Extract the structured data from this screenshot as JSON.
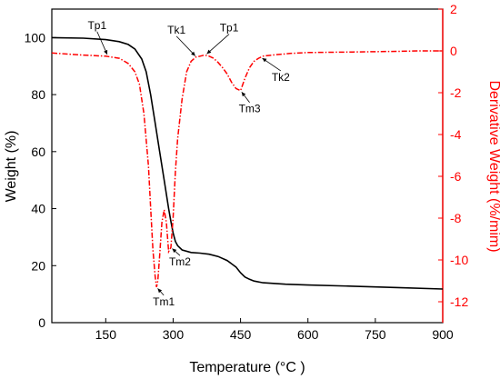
{
  "chart_data": {
    "type": "line",
    "xlabel": "Temperature (°C )",
    "ylabel_left": "Weight (%)",
    "ylabel_right": "Derivative Weight (%/mim)",
    "xlim": [
      30,
      900
    ],
    "ylim_left": [
      0,
      110
    ],
    "ylim_right": [
      -13,
      2
    ],
    "xticks": [
      150,
      300,
      450,
      600,
      750,
      900
    ],
    "yticks_left": [
      0,
      20,
      40,
      60,
      80,
      100
    ],
    "yticks_right": [
      2,
      0,
      -2,
      -4,
      -6,
      -8,
      -10,
      -12
    ],
    "grid": false,
    "colors": {
      "weight": "#000000",
      "derivative": "#ff0000"
    },
    "series": [
      {
        "axis": "left",
        "style": "solid",
        "x": [
          30,
          100,
          150,
          180,
          200,
          215,
          230,
          240,
          250,
          260,
          270,
          280,
          290,
          295,
          300,
          305,
          310,
          320,
          340,
          360,
          380,
          400,
          420,
          440,
          450,
          460,
          470,
          480,
          500,
          550,
          600,
          700,
          800,
          900
        ],
        "y": [
          100,
          99.8,
          99.3,
          98.6,
          97.6,
          96.0,
          92.5,
          88.0,
          80.0,
          70.0,
          60.0,
          50.0,
          40.0,
          35.5,
          31.5,
          28.5,
          27.0,
          25.5,
          24.6,
          24.4,
          24.0,
          23.2,
          21.8,
          19.5,
          17.5,
          16.0,
          15.2,
          14.6,
          14.0,
          13.5,
          13.2,
          12.8,
          12.3,
          11.8
        ]
      },
      {
        "axis": "right",
        "style": "dash-dot",
        "x": [
          30,
          100,
          150,
          180,
          200,
          215,
          225,
          235,
          245,
          250,
          255,
          260,
          263,
          266,
          270,
          275,
          280,
          285,
          290,
          295,
          300,
          305,
          310,
          320,
          330,
          340,
          350,
          360,
          370,
          380,
          390,
          400,
          410,
          420,
          430,
          440,
          450,
          455,
          460,
          470,
          480,
          490,
          500,
          520,
          560,
          600,
          700,
          800,
          850,
          900
        ],
        "y": [
          -0.1,
          -0.2,
          -0.25,
          -0.35,
          -0.6,
          -1.0,
          -1.6,
          -3.0,
          -5.5,
          -7.5,
          -9.5,
          -10.8,
          -11.3,
          -11.0,
          -9.8,
          -8.2,
          -7.6,
          -8.2,
          -9.6,
          -9.4,
          -8.0,
          -5.8,
          -4.2,
          -2.3,
          -1.0,
          -0.5,
          -0.3,
          -0.25,
          -0.2,
          -0.25,
          -0.35,
          -0.55,
          -0.8,
          -1.1,
          -1.5,
          -1.8,
          -1.9,
          -1.6,
          -1.3,
          -0.8,
          -0.5,
          -0.35,
          -0.25,
          -0.2,
          -0.12,
          -0.08,
          -0.05,
          -0.02,
          0.0,
          0.0
        ]
      }
    ],
    "annotations": [
      {
        "text": "Tp1",
        "x": 155,
        "y_right": -0.25
      },
      {
        "text": "Tk1",
        "x": 352,
        "y_right": -0.3
      },
      {
        "text": "Tp1",
        "x": 372,
        "y_right": -0.2
      },
      {
        "text": "Tm3",
        "x": 450,
        "y_right": -1.9
      },
      {
        "text": "Tk2",
        "x": 495,
        "y_right": -0.3
      },
      {
        "text": "Tm2",
        "x": 295,
        "y_right": -9.4
      },
      {
        "text": "Tm1",
        "x": 263,
        "y_right": -11.3
      }
    ]
  }
}
